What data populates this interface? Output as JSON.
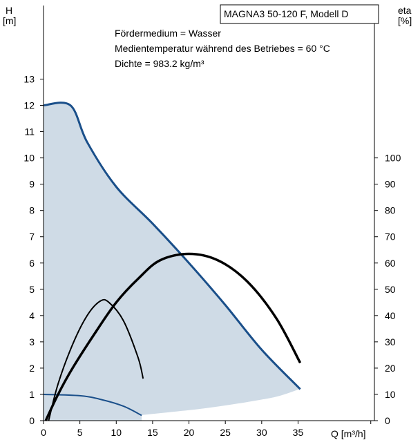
{
  "chart_data": {
    "type": "line",
    "title": "MAGNA3 50-120 F, Modell D",
    "annotations": [
      "Fördermedium = Wasser",
      "Medientemperatur während des Betriebes = 60 °C",
      "Dichte = 983.2 kg/m³"
    ],
    "ylabel_left": [
      "H",
      "[m]"
    ],
    "ylabel_right": [
      "eta",
      "[%]"
    ],
    "xlabel": "Q [m³/h]",
    "xlim": [
      0,
      45.5
    ],
    "ylim": [
      0,
      15.8
    ],
    "ylim_right": [
      0,
      158
    ],
    "x_ticks": [
      "0",
      "5",
      "10",
      "15",
      "20",
      "25",
      "30",
      "35"
    ],
    "y_ticks": [
      "0",
      "1",
      "2",
      "3",
      "4",
      "5",
      "6",
      "7",
      "8",
      "9",
      "10",
      "11",
      "12",
      "13"
    ],
    "y_ticks_right": [
      "0",
      "10",
      "20",
      "30",
      "40",
      "50",
      "60",
      "70",
      "80",
      "90",
      "100"
    ],
    "grid": false,
    "colors": {
      "head": "#1a4f8a",
      "area": "#cfdbe6",
      "eta": "#000000"
    },
    "series": [
      {
        "kind": "max-head",
        "points": [
          [
            0,
            12.0
          ],
          [
            3.7,
            12.0
          ],
          [
            6,
            10.6
          ],
          [
            10,
            8.9
          ],
          [
            15,
            7.5
          ],
          [
            20,
            6.0
          ],
          [
            25,
            4.4
          ],
          [
            30,
            2.7
          ],
          [
            35.3,
            1.2
          ]
        ]
      },
      {
        "kind": "min-head",
        "points": [
          [
            0,
            1.0
          ],
          [
            5,
            0.95
          ],
          [
            8,
            0.8
          ],
          [
            11,
            0.55
          ],
          [
            13.5,
            0.2
          ]
        ]
      },
      {
        "kind": "min-boundary",
        "points": [
          [
            13.5,
            0.2
          ],
          [
            17,
            0.3
          ],
          [
            22,
            0.45
          ],
          [
            27,
            0.65
          ],
          [
            32,
            0.9
          ],
          [
            35.3,
            1.2
          ]
        ]
      },
      {
        "kind": "eta-max",
        "axis": "right",
        "points": [
          [
            0.3,
            0
          ],
          [
            2,
            10
          ],
          [
            4,
            20
          ],
          [
            7,
            33
          ],
          [
            10,
            45
          ],
          [
            13,
            54
          ],
          [
            16,
            61
          ],
          [
            20,
            63.5
          ],
          [
            24,
            61
          ],
          [
            28,
            53
          ],
          [
            32,
            39
          ],
          [
            35.3,
            22
          ]
        ]
      },
      {
        "kind": "eta-min",
        "axis": "right",
        "points": [
          [
            0.7,
            0
          ],
          [
            2,
            14
          ],
          [
            4,
            29
          ],
          [
            6,
            40
          ],
          [
            7.8,
            45.5
          ],
          [
            9,
            45
          ],
          [
            11,
            38
          ],
          [
            13,
            24
          ],
          [
            13.7,
            16
          ]
        ]
      }
    ]
  }
}
